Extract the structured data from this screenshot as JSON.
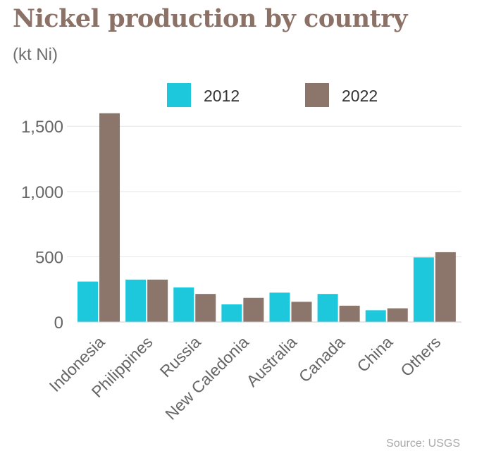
{
  "title": "Nickel production by country",
  "subtitle": "(kt Ni)",
  "source": "Source: USGS",
  "colors": {
    "series_2012": "#1ec8dc",
    "series_2022": "#8c766b",
    "title": "#8c7266"
  },
  "chart_data": {
    "type": "bar",
    "title": "Nickel production by country",
    "subtitle": "(kt Ni)",
    "categories": [
      "Indonesia",
      "Philippines",
      "Russia",
      "New Caledonia",
      "Australia",
      "Canada",
      "China",
      "Others"
    ],
    "series": [
      {
        "name": "2012",
        "values": [
          310,
          325,
          265,
          135,
          225,
          215,
          90,
          495
        ]
      },
      {
        "name": "2022",
        "values": [
          1600,
          325,
          215,
          185,
          155,
          125,
          105,
          535
        ]
      }
    ],
    "yticks": [
      "0",
      "500",
      "1,000",
      "1,500"
    ],
    "ytick_values": [
      0,
      500,
      1000,
      1500
    ],
    "ylim": [
      0,
      1620
    ],
    "grid": true,
    "legend_position": "top"
  }
}
